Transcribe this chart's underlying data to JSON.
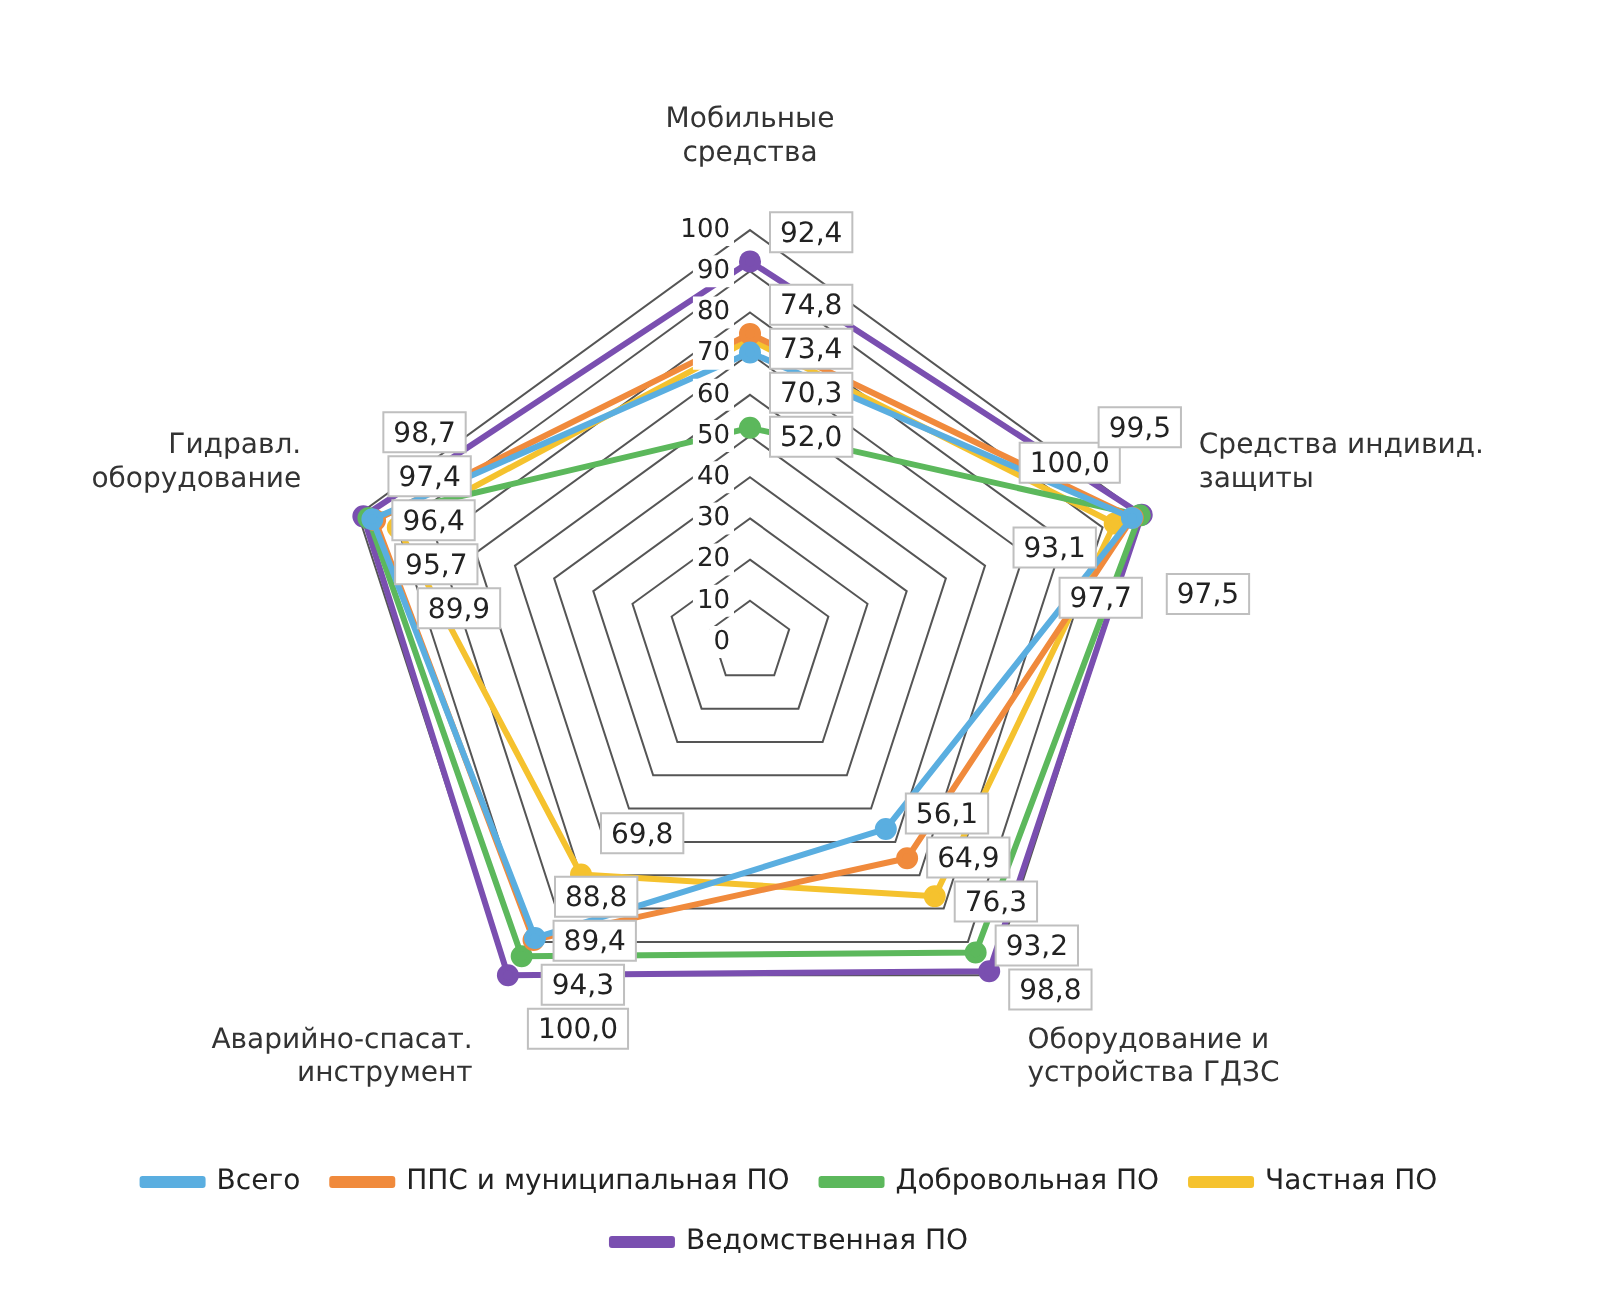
{
  "chart_data": {
    "type": "radar",
    "categories": [
      "Мобильные средства",
      "Средства индивид. защиты",
      "Оборудование и устройства ГДЗС",
      "Аварийно-спасат. инструмент",
      "Гидравл. оборудование"
    ],
    "series": [
      {
        "name": "Всего",
        "color": "#5aaee0",
        "values": [
          70.3,
          97.5,
          56.1,
          88.8,
          96.4
        ],
        "value_labels": [
          "70,3",
          "97,5",
          "56,1",
          "88,8",
          "96,4"
        ]
      },
      {
        "name": "ППС и муниципальная ПО",
        "color": "#f08a3c",
        "values": [
          74.8,
          97.7,
          64.9,
          89.4,
          95.7
        ],
        "value_labels": [
          "74,8",
          "97,7",
          "64,9",
          "89,4",
          "95,7"
        ]
      },
      {
        "name": "Добровольная ПО",
        "color": "#5cb85c",
        "values": [
          52.0,
          99.5,
          93.2,
          94.3,
          97.4
        ],
        "value_labels": [
          "52,0",
          "99,5",
          "93,2",
          "94,3",
          "97,4"
        ]
      },
      {
        "name": "Частная ПО",
        "color": "#f5c22e",
        "values": [
          73.4,
          93.1,
          76.3,
          69.8,
          89.9
        ],
        "value_labels": [
          "73,4",
          "93,1",
          "76,3",
          "69,8",
          "89,9"
        ]
      },
      {
        "name": "Ведомственная ПО",
        "color": "#7a4fb0",
        "values": [
          92.4,
          100.0,
          98.8,
          100.0,
          98.7
        ],
        "value_labels": [
          "92,4",
          "100,0",
          "98,8",
          "100,0",
          "98,7"
        ]
      }
    ],
    "ylim": [
      0,
      100
    ],
    "yticks": [
      0,
      10,
      20,
      30,
      40,
      50,
      60,
      70,
      80,
      90,
      100
    ],
    "grid": true,
    "legend": "bottom",
    "marker": "circle",
    "line_style": "solid",
    "data_labels": true
  }
}
